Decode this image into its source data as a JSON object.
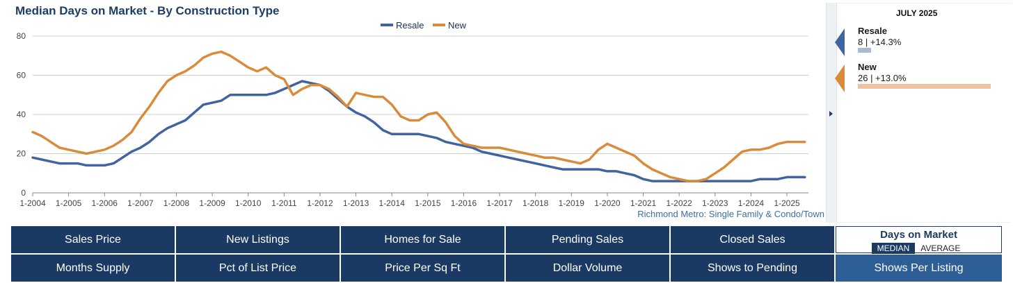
{
  "colors": {
    "resale": "#3f64a0",
    "new": "#d98b3a",
    "tile_bg": "#1b3a63",
    "tile_selected_bg": "#2d5e95",
    "title": "#1d3d66"
  },
  "chart_data": {
    "type": "line",
    "title": "Median Days on Market - By Construction Type",
    "xlabel": "",
    "ylabel": "",
    "ylim": [
      0,
      80
    ],
    "yticks": [
      0,
      20,
      40,
      60,
      80
    ],
    "xlim": [
      2004,
      2025.6
    ],
    "xticks": [
      {
        "value": 2004,
        "label": "1-2004"
      },
      {
        "value": 2005,
        "label": "1-2005"
      },
      {
        "value": 2006,
        "label": "1-2006"
      },
      {
        "value": 2007,
        "label": "1-2007"
      },
      {
        "value": 2008,
        "label": "1-2008"
      },
      {
        "value": 2009,
        "label": "1-2009"
      },
      {
        "value": 2010,
        "label": "1-2010"
      },
      {
        "value": 2011,
        "label": "1-2011"
      },
      {
        "value": 2012,
        "label": "1-2012"
      },
      {
        "value": 2013,
        "label": "1-2013"
      },
      {
        "value": 2014,
        "label": "1-2014"
      },
      {
        "value": 2015,
        "label": "1-2015"
      },
      {
        "value": 2016,
        "label": "1-2016"
      },
      {
        "value": 2017,
        "label": "1-2017"
      },
      {
        "value": 2018,
        "label": "1-2018"
      },
      {
        "value": 2019,
        "label": "1-2019"
      },
      {
        "value": 2020,
        "label": "1-2020"
      },
      {
        "value": 2021,
        "label": "1-2021"
      },
      {
        "value": 2022,
        "label": "1-2022"
      },
      {
        "value": 2023,
        "label": "1-2023"
      },
      {
        "value": 2024,
        "label": "1-2024"
      },
      {
        "value": 2025,
        "label": "1-2025"
      }
    ],
    "legend_position": "top-center",
    "grid": true,
    "series": [
      {
        "name": "Resale",
        "color": "#3f64a0",
        "points": [
          [
            2004.0,
            18
          ],
          [
            2004.25,
            17
          ],
          [
            2004.5,
            16
          ],
          [
            2004.75,
            15
          ],
          [
            2005.0,
            15
          ],
          [
            2005.25,
            15
          ],
          [
            2005.5,
            14
          ],
          [
            2005.75,
            14
          ],
          [
            2006.0,
            14
          ],
          [
            2006.25,
            15
          ],
          [
            2006.5,
            18
          ],
          [
            2006.75,
            21
          ],
          [
            2007.0,
            23
          ],
          [
            2007.25,
            26
          ],
          [
            2007.5,
            30
          ],
          [
            2007.75,
            33
          ],
          [
            2008.0,
            35
          ],
          [
            2008.25,
            37
          ],
          [
            2008.5,
            41
          ],
          [
            2008.75,
            45
          ],
          [
            2009.0,
            46
          ],
          [
            2009.25,
            47
          ],
          [
            2009.5,
            50
          ],
          [
            2009.75,
            50
          ],
          [
            2010.0,
            50
          ],
          [
            2010.25,
            50
          ],
          [
            2010.5,
            50
          ],
          [
            2010.75,
            51
          ],
          [
            2011.0,
            53
          ],
          [
            2011.25,
            55
          ],
          [
            2011.5,
            57
          ],
          [
            2011.75,
            56
          ],
          [
            2012.0,
            55
          ],
          [
            2012.25,
            52
          ],
          [
            2012.5,
            48
          ],
          [
            2012.75,
            44
          ],
          [
            2013.0,
            41
          ],
          [
            2013.25,
            39
          ],
          [
            2013.5,
            36
          ],
          [
            2013.75,
            32
          ],
          [
            2014.0,
            30
          ],
          [
            2014.25,
            30
          ],
          [
            2014.5,
            30
          ],
          [
            2014.75,
            30
          ],
          [
            2015.0,
            29
          ],
          [
            2015.25,
            28
          ],
          [
            2015.5,
            26
          ],
          [
            2015.75,
            25
          ],
          [
            2016.0,
            24
          ],
          [
            2016.25,
            23
          ],
          [
            2016.5,
            21
          ],
          [
            2016.75,
            20
          ],
          [
            2017.0,
            19
          ],
          [
            2017.25,
            18
          ],
          [
            2017.5,
            17
          ],
          [
            2017.75,
            16
          ],
          [
            2018.0,
            15
          ],
          [
            2018.25,
            14
          ],
          [
            2018.5,
            13
          ],
          [
            2018.75,
            12
          ],
          [
            2019.0,
            12
          ],
          [
            2019.25,
            12
          ],
          [
            2019.5,
            12
          ],
          [
            2019.75,
            12
          ],
          [
            2020.0,
            11
          ],
          [
            2020.25,
            11
          ],
          [
            2020.5,
            10
          ],
          [
            2020.75,
            9
          ],
          [
            2021.0,
            7
          ],
          [
            2021.25,
            6
          ],
          [
            2021.5,
            6
          ],
          [
            2021.75,
            6
          ],
          [
            2022.0,
            6
          ],
          [
            2022.25,
            6
          ],
          [
            2022.5,
            6
          ],
          [
            2022.75,
            6
          ],
          [
            2023.0,
            6
          ],
          [
            2023.25,
            6
          ],
          [
            2023.5,
            6
          ],
          [
            2023.75,
            6
          ],
          [
            2024.0,
            6
          ],
          [
            2024.25,
            7
          ],
          [
            2024.5,
            7
          ],
          [
            2024.75,
            7
          ],
          [
            2025.0,
            8
          ],
          [
            2025.25,
            8
          ],
          [
            2025.5,
            8
          ]
        ]
      },
      {
        "name": "New",
        "color": "#d98b3a",
        "points": [
          [
            2004.0,
            31
          ],
          [
            2004.25,
            29
          ],
          [
            2004.5,
            26
          ],
          [
            2004.75,
            23
          ],
          [
            2005.0,
            22
          ],
          [
            2005.25,
            21
          ],
          [
            2005.5,
            20
          ],
          [
            2005.75,
            21
          ],
          [
            2006.0,
            22
          ],
          [
            2006.25,
            24
          ],
          [
            2006.5,
            27
          ],
          [
            2006.75,
            31
          ],
          [
            2007.0,
            38
          ],
          [
            2007.25,
            44
          ],
          [
            2007.5,
            51
          ],
          [
            2007.75,
            57
          ],
          [
            2008.0,
            60
          ],
          [
            2008.25,
            62
          ],
          [
            2008.5,
            65
          ],
          [
            2008.75,
            69
          ],
          [
            2009.0,
            71
          ],
          [
            2009.25,
            72
          ],
          [
            2009.5,
            70
          ],
          [
            2009.75,
            67
          ],
          [
            2010.0,
            64
          ],
          [
            2010.25,
            62
          ],
          [
            2010.5,
            64
          ],
          [
            2010.75,
            60
          ],
          [
            2011.0,
            58
          ],
          [
            2011.25,
            50
          ],
          [
            2011.5,
            53
          ],
          [
            2011.75,
            55
          ],
          [
            2012.0,
            55
          ],
          [
            2012.25,
            53
          ],
          [
            2012.5,
            49
          ],
          [
            2012.75,
            44
          ],
          [
            2013.0,
            51
          ],
          [
            2013.25,
            50
          ],
          [
            2013.5,
            49
          ],
          [
            2013.75,
            49
          ],
          [
            2014.0,
            45
          ],
          [
            2014.25,
            39
          ],
          [
            2014.5,
            37
          ],
          [
            2014.75,
            37
          ],
          [
            2015.0,
            40
          ],
          [
            2015.25,
            41
          ],
          [
            2015.5,
            36
          ],
          [
            2015.75,
            29
          ],
          [
            2016.0,
            25
          ],
          [
            2016.25,
            24
          ],
          [
            2016.5,
            23
          ],
          [
            2016.75,
            23
          ],
          [
            2017.0,
            23
          ],
          [
            2017.25,
            22
          ],
          [
            2017.5,
            21
          ],
          [
            2017.75,
            20
          ],
          [
            2018.0,
            19
          ],
          [
            2018.25,
            18
          ],
          [
            2018.5,
            18
          ],
          [
            2018.75,
            17
          ],
          [
            2019.0,
            16
          ],
          [
            2019.25,
            15
          ],
          [
            2019.5,
            17
          ],
          [
            2019.75,
            22
          ],
          [
            2020.0,
            25
          ],
          [
            2020.25,
            23
          ],
          [
            2020.5,
            21
          ],
          [
            2020.75,
            19
          ],
          [
            2021.0,
            15
          ],
          [
            2021.25,
            12
          ],
          [
            2021.5,
            10
          ],
          [
            2021.75,
            8
          ],
          [
            2022.0,
            7
          ],
          [
            2022.25,
            6
          ],
          [
            2022.5,
            6
          ],
          [
            2022.75,
            7
          ],
          [
            2023.0,
            10
          ],
          [
            2023.25,
            13
          ],
          [
            2023.5,
            17
          ],
          [
            2023.75,
            21
          ],
          [
            2024.0,
            22
          ],
          [
            2024.25,
            22
          ],
          [
            2024.5,
            23
          ],
          [
            2024.75,
            25
          ],
          [
            2025.0,
            26
          ],
          [
            2025.25,
            26
          ],
          [
            2025.5,
            26
          ]
        ]
      }
    ]
  },
  "footnote": "Richmond Metro: Single Family & Condo/Town",
  "panel": {
    "period": "JULY 2025",
    "items": [
      {
        "name": "Resale",
        "value": "8 | +14.3%",
        "color": "#3f64a0",
        "bar_color": "#a9b9d6",
        "bar_fraction": 0.1
      },
      {
        "name": "New",
        "value": "26 | +13.0%",
        "color": "#d98b3a",
        "bar_color": "#f0c3a0",
        "bar_fraction": 1.0
      }
    ]
  },
  "tiles": {
    "row1": [
      "Sales Price",
      "New Listings",
      "Homes for Sale",
      "Pending Sales",
      "Closed Sales"
    ],
    "row2": [
      "Months Supply",
      "Pct of List Price",
      "Price Per Sq Ft",
      "Dollar Volume",
      "Shows to Pending",
      "Shows Per Listing"
    ],
    "active": {
      "title": "Days on Market",
      "options": [
        "MEDIAN",
        "AVERAGE"
      ]
    }
  }
}
